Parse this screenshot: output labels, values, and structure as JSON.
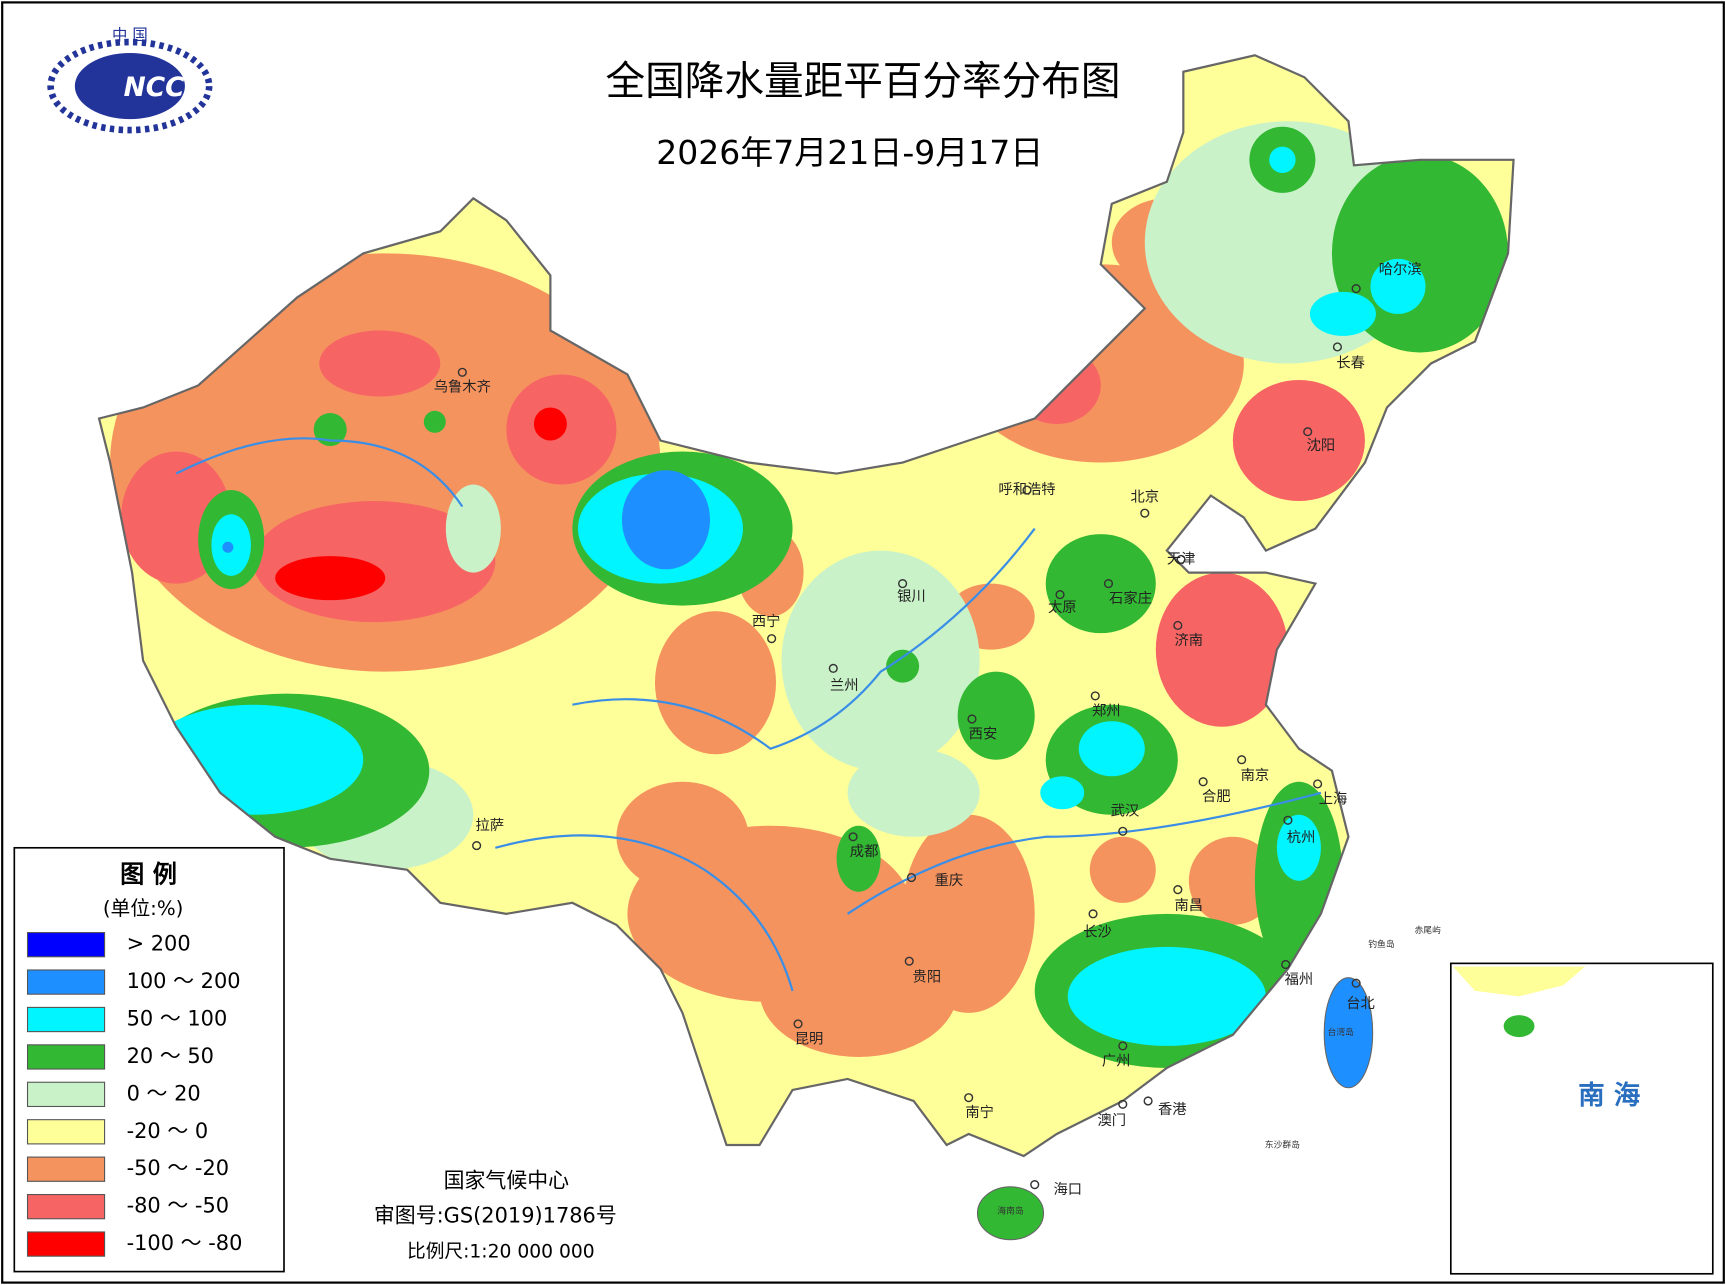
{
  "title": "全国降水量距平百分率分布图",
  "subtitle": "2026年7月21日-9月17日",
  "logo": {
    "top": "中 国",
    "text": "NCC"
  },
  "legend": {
    "title": "图 例",
    "unit": "(单位:%)",
    "items": [
      {
        "label": "> 200",
        "color": "#0000ff"
      },
      {
        "label": "100 ～ 200",
        "color": "#1e8fff"
      },
      {
        "label": "50 ～ 100",
        "color": "#00f5ff"
      },
      {
        "label": "20 ～ 50",
        "color": "#33b833"
      },
      {
        "label": "0 ～ 20",
        "color": "#c9f2c9"
      },
      {
        "label": "-20 ～ 0",
        "color": "#ffff99"
      },
      {
        "label": "-50 ～ -20",
        "color": "#f5935f"
      },
      {
        "label": "-80 ～ -50",
        "color": "#f76464"
      },
      {
        "label": "-100 ～ -80",
        "color": "#ff0000"
      }
    ]
  },
  "cities": [
    "乌鲁木齐",
    "呼和浩特",
    "北京",
    "天津",
    "哈尔滨",
    "长春",
    "沈阳",
    "银川",
    "西宁",
    "兰州",
    "太原",
    "石家庄",
    "济南",
    "郑州",
    "西安",
    "南京",
    "合肥",
    "上海",
    "武汉",
    "杭州",
    "拉萨",
    "成都",
    "重庆",
    "南昌",
    "长沙",
    "福州",
    "贵阳",
    "台北",
    "昆明",
    "广州",
    "南宁",
    "澳门",
    "香港",
    "海口"
  ],
  "places": [
    "台湾岛",
    "钓鱼岛",
    "赤尾屿",
    "东沙群岛",
    "海南岛"
  ],
  "footer": {
    "org": "国家气候中心",
    "approval": "审图号:GS(2019)1786号",
    "scale": "比例尺:1:20 000 000"
  },
  "inset": {
    "label": "南 海"
  }
}
